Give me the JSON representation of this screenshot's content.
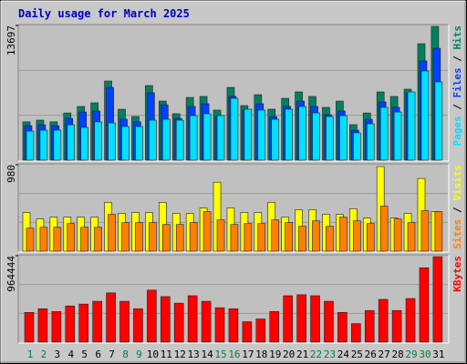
{
  "chart_data": [
    {
      "type": "bar",
      "title": "Daily usage for March 2025",
      "ylim": [
        0,
        13697
      ],
      "yticks": [
        13697
      ],
      "legend_separator": "/",
      "series": [
        {
          "name": "Hits",
          "color": "#008060",
          "values": [
            3900,
            4070,
            3900,
            4800,
            5460,
            5830,
            8050,
            5180,
            4440,
            7590,
            6010,
            4720,
            6380,
            6480,
            5090,
            7400,
            5550,
            6660,
            5180,
            6290,
            6940,
            6480,
            5370,
            6010,
            3610,
            4800,
            6940,
            6480,
            7220,
            11840,
            13600
          ]
        },
        {
          "name": "Files",
          "color": "#0040ff",
          "values": [
            3500,
            3600,
            3500,
            4250,
            4900,
            5000,
            7400,
            4160,
            3900,
            6850,
            5640,
            4250,
            5460,
            5740,
            4440,
            6480,
            5090,
            5740,
            4440,
            5460,
            6010,
            5460,
            4630,
            5000,
            3050,
            4160,
            5920,
            5370,
            6850,
            10090,
            11380
          ]
        },
        {
          "name": "Pages",
          "color": "#00e0ff",
          "values": [
            2960,
            3050,
            3050,
            3600,
            3330,
            3890,
            3790,
            3420,
            3420,
            4070,
            4160,
            4070,
            4530,
            4720,
            4530,
            6290,
            5180,
            5090,
            4160,
            5180,
            5460,
            4810,
            4440,
            4530,
            2780,
            3700,
            5370,
            4900,
            6940,
            9070,
            7960
          ]
        }
      ]
    },
    {
      "type": "bar",
      "ylim": [
        0,
        980
      ],
      "yticks": [
        980
      ],
      "legend_separator": "/",
      "series": [
        {
          "name": "Visits",
          "color": "#ffff00",
          "values": [
            438,
            365,
            386,
            386,
            386,
            386,
            553,
            428,
            438,
            438,
            553,
            428,
            428,
            490,
            782,
            490,
            438,
            438,
            553,
            386,
            469,
            469,
            417,
            417,
            480,
            375,
            959,
            375,
            428,
            824,
            448
          ]
        },
        {
          "name": "Sites",
          "color": "#ff8000",
          "values": [
            261,
            271,
            271,
            313,
            271,
            271,
            417,
            323,
            323,
            323,
            302,
            302,
            323,
            448,
            355,
            302,
            313,
            313,
            355,
            323,
            282,
            344,
            282,
            386,
            344,
            313,
            511,
            365,
            323,
            459,
            448
          ]
        }
      ]
    },
    {
      "type": "bar",
      "ylim": [
        0,
        964444
      ],
      "yticks": [
        964444
      ],
      "categories": [
        "1",
        "2",
        "3",
        "4",
        "5",
        "6",
        "7",
        "8",
        "9",
        "10",
        "11",
        "12",
        "13",
        "14",
        "15",
        "16",
        "17",
        "18",
        "19",
        "20",
        "21",
        "22",
        "23",
        "24",
        "25",
        "26",
        "27",
        "28",
        "29",
        "30",
        "31"
      ],
      "category_colors": [
        "#008040",
        "#008040",
        "#000000",
        "#000000",
        "#000000",
        "#000000",
        "#000000",
        "#008040",
        "#008040",
        "#000000",
        "#000000",
        "#000000",
        "#000000",
        "#000000",
        "#008040",
        "#008040",
        "#000000",
        "#000000",
        "#000000",
        "#000000",
        "#000000",
        "#008040",
        "#008040",
        "#000000",
        "#000000",
        "#000000",
        "#000000",
        "#000000",
        "#008040",
        "#008040",
        "#000000"
      ],
      "series": [
        {
          "name": "KBytes",
          "color": "#ff0000",
          "values": [
            332000,
            373000,
            342000,
            404000,
            425000,
            456000,
            550000,
            456000,
            373000,
            581000,
            508000,
            435000,
            518000,
            456000,
            384000,
            373000,
            228000,
            259000,
            342000,
            518000,
            529000,
            518000,
            456000,
            332000,
            207000,
            353000,
            477000,
            353000,
            487000,
            830000,
            954000
          ]
        }
      ]
    }
  ]
}
